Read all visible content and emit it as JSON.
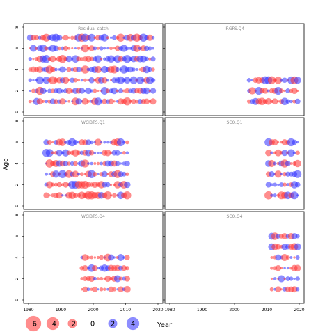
{
  "chart_data": {
    "type": "scatter",
    "ylabel": "Age",
    "xlabel": "Year",
    "xlim": [
      1980,
      2020
    ],
    "ylim": [
      0,
      8
    ],
    "x_ticks": [
      "1980",
      "1990",
      "2000",
      "2010",
      "2020"
    ],
    "y_ticks": [
      "0",
      "2",
      "4",
      "6",
      "8"
    ],
    "colors": {
      "negative": "#ff3030",
      "positive": "#3030ff"
    },
    "legend": {
      "placement": "bottom",
      "entries": [
        {
          "label": "-6",
          "value": -6
        },
        {
          "label": "-4",
          "value": -4
        },
        {
          "label": "-2",
          "value": -2
        },
        {
          "label": "0",
          "value": 0
        },
        {
          "label": "2",
          "value": 2
        },
        {
          "label": "4",
          "value": 4
        }
      ]
    },
    "panels": [
      {
        "name": "Residual catch",
        "years": [
          1980,
          2018
        ],
        "ages": [
          1,
          2,
          3,
          4,
          5,
          6,
          7
        ],
        "seed": 11,
        "scale": 1.0
      },
      {
        "name": "IRGFS.Q4",
        "years": [
          2004,
          2019
        ],
        "ages": [
          1,
          2,
          3
        ],
        "seed": 23,
        "scale": 1.0
      },
      {
        "name": "WCIBTS.Q1",
        "years": [
          1985,
          2010
        ],
        "ages": [
          1,
          2,
          3,
          4,
          5,
          6
        ],
        "seed": 37,
        "scale": 1.0
      },
      {
        "name": "SCO.Q1",
        "years": [
          2010,
          2019
        ],
        "ages": [
          1,
          2,
          3,
          4,
          5,
          6
        ],
        "seed": 41,
        "scale": 1.0
      },
      {
        "name": "WCIBTS.Q4",
        "years": [
          1996,
          2010
        ],
        "ages": [
          1,
          2,
          3,
          4
        ],
        "seed": 53,
        "scale": 0.9
      },
      {
        "name": "SCO.Q4",
        "years": [
          2011,
          2019
        ],
        "ages": [
          1,
          2,
          3,
          4,
          5,
          6
        ],
        "seed": 67,
        "scale": 0.9
      }
    ]
  }
}
